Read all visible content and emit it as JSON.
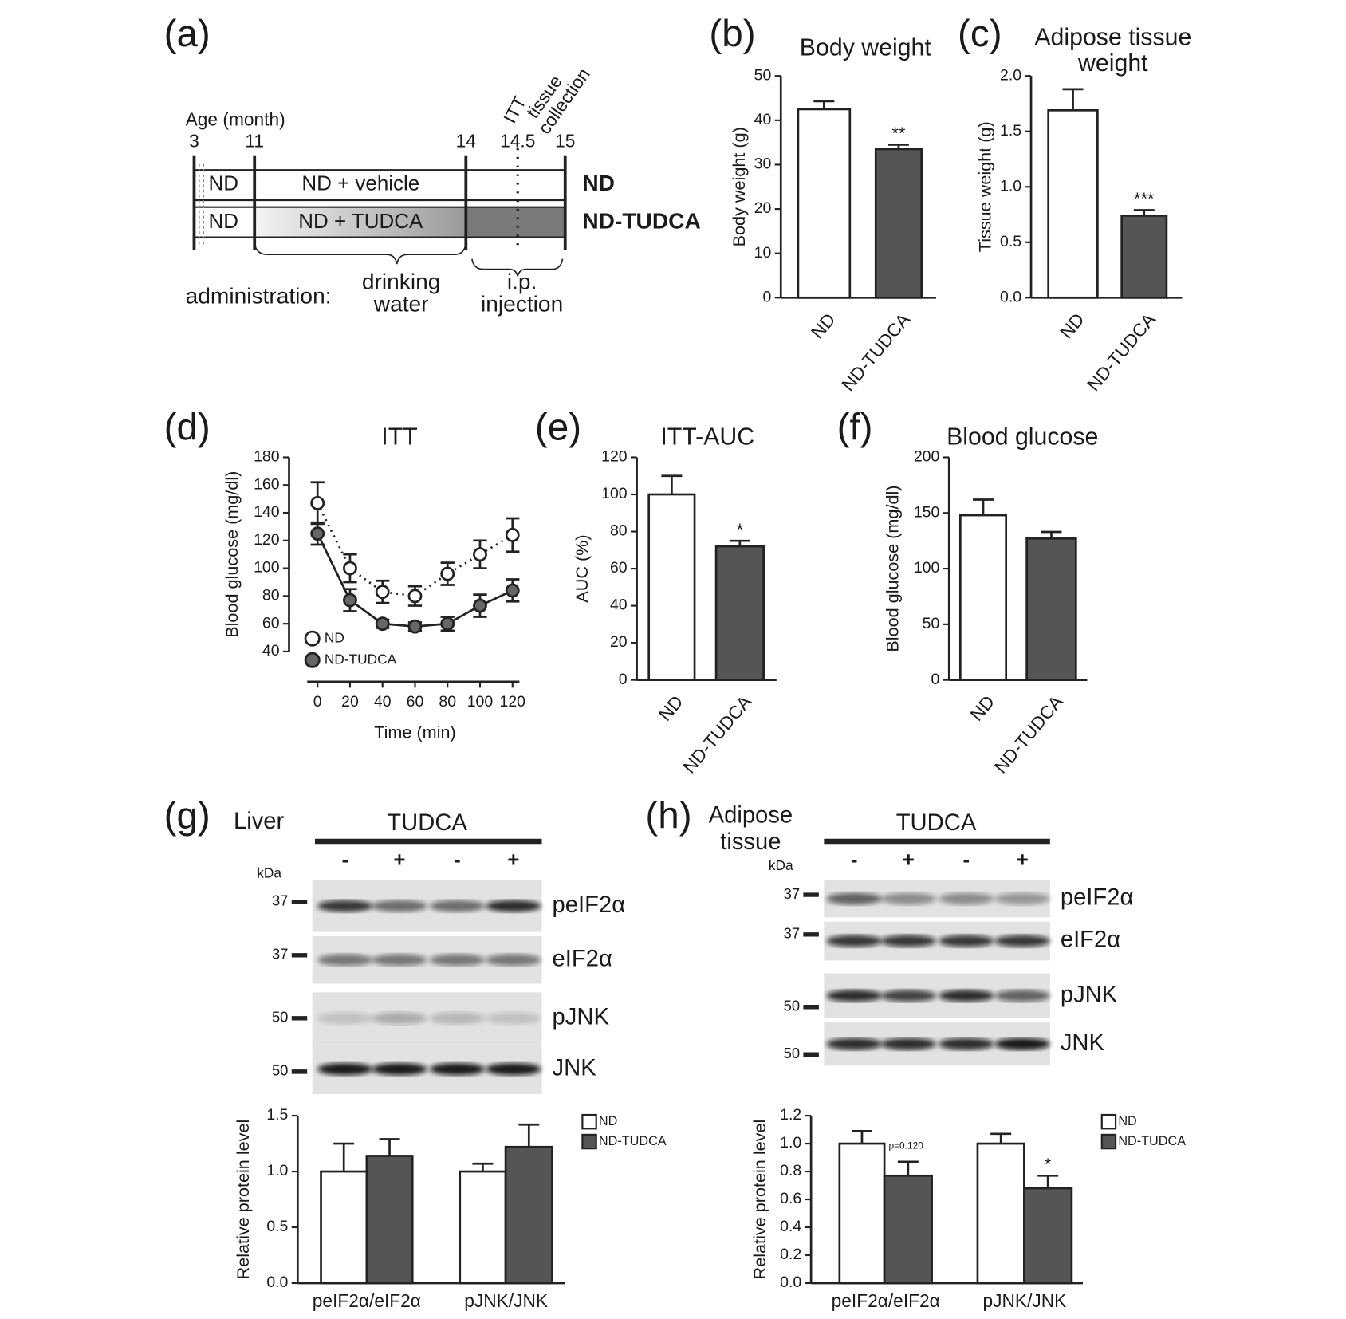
{
  "diagram": {
    "label": "(a)",
    "age_label": "Age (month)",
    "ages": [
      "3",
      "11",
      "14",
      "14.5",
      "15"
    ],
    "itt": "ITT",
    "collection": [
      "tissue",
      "collection"
    ],
    "rows": [
      {
        "pre": "ND",
        "treatment": "ND + vehicle",
        "group": "ND"
      },
      {
        "pre": "ND",
        "treatment": "ND + TUDCA",
        "group": "ND-TUDCA"
      }
    ],
    "administration": "administration:",
    "routes": [
      [
        "drinking",
        "water"
      ],
      [
        "i.p.",
        "injection"
      ]
    ]
  },
  "chart_data": [
    {
      "type": "bar",
      "label": "(b)",
      "title": [
        "Body weight"
      ],
      "y_label": "Body weight (g)",
      "categories": [
        "ND",
        "ND-TUDCA"
      ],
      "values": [
        42.5,
        33.5
      ],
      "errors": [
        1.8,
        1.0
      ],
      "annotations": [
        null,
        "**"
      ],
      "colors": [
        "#ffffff",
        "#555555"
      ],
      "ylim": [
        0,
        50
      ],
      "yticks": [
        0,
        10,
        20,
        30,
        40,
        50
      ]
    },
    {
      "type": "bar",
      "label": "(c)",
      "title": [
        "Adipose tissue",
        "weight"
      ],
      "y_label": "Tissue weight (g)",
      "categories": [
        "ND",
        "ND-TUDCA"
      ],
      "values": [
        1.69,
        0.74
      ],
      "errors": [
        0.19,
        0.05
      ],
      "annotations": [
        null,
        "***"
      ],
      "colors": [
        "#ffffff",
        "#555555"
      ],
      "ylim": [
        0,
        2
      ],
      "yticks": [
        {
          "value": 0,
          "label": "0.0"
        },
        {
          "value": 0.5,
          "label": "0.5"
        },
        {
          "value": 1,
          "label": "1.0"
        },
        {
          "value": 1.5,
          "label": "1.5"
        },
        {
          "value": 2,
          "label": "2.0"
        }
      ]
    },
    {
      "type": "line",
      "label": "(d)",
      "title": [
        "ITT"
      ],
      "y_label": "Blood glucose (mg/dl)",
      "x_label": "Time (min)",
      "x": [
        0,
        20,
        40,
        60,
        80,
        100,
        120
      ],
      "xlim": [
        0,
        120
      ],
      "xticks": [
        0,
        20,
        40,
        60,
        80,
        100,
        120
      ],
      "series": [
        {
          "name": "ND",
          "color": "#ffffff",
          "line_style": "dotted",
          "values": [
            147,
            100,
            83,
            80,
            96,
            110,
            124
          ],
          "errors": [
            15,
            10,
            8,
            7,
            8,
            10,
            12
          ]
        },
        {
          "name": "ND-TUDCA",
          "color": "#666666",
          "line_style": "solid",
          "values": [
            125,
            77,
            60,
            58,
            60,
            73,
            84
          ],
          "errors": [
            8,
            8,
            3,
            3,
            5,
            8,
            8
          ]
        }
      ],
      "ylim": [
        40,
        180
      ],
      "yticks": [
        40,
        60,
        80,
        100,
        120,
        140,
        160,
        180
      ],
      "legend": "lower left"
    },
    {
      "type": "bar",
      "label": "(e)",
      "title": [
        "ITT-AUC"
      ],
      "y_label": "AUC (%)",
      "categories": [
        "ND",
        "ND-TUDCA"
      ],
      "values": [
        100,
        72
      ],
      "errors": [
        10,
        3
      ],
      "annotations": [
        null,
        "*"
      ],
      "colors": [
        "#ffffff",
        "#555555"
      ],
      "ylim": [
        0,
        120
      ],
      "yticks": [
        0,
        20,
        40,
        60,
        80,
        100,
        120
      ]
    },
    {
      "type": "bar",
      "label": "(f)",
      "title": [
        "Blood glucose"
      ],
      "y_label": "Blood glucose (mg/dl)",
      "categories": [
        "ND",
        "ND-TUDCA"
      ],
      "values": [
        148,
        127
      ],
      "errors": [
        14,
        6
      ],
      "colors": [
        "#ffffff",
        "#555555"
      ],
      "ylim": [
        0,
        200
      ],
      "yticks": [
        0,
        50,
        100,
        150,
        200
      ]
    },
    {
      "type": "bar",
      "y_label": "Relative protein level",
      "categories": [
        "peIF2α/eIF2α",
        "pJNK/JNK"
      ],
      "series": [
        {
          "name": "ND",
          "color": "#ffffff",
          "values": [
            1.0,
            1.0
          ],
          "errors": [
            0.25,
            0.07
          ]
        },
        {
          "name": "ND-TUDCA",
          "color": "#555555",
          "values": [
            1.14,
            1.22
          ],
          "errors": [
            0.15,
            0.2
          ]
        }
      ],
      "ylim": [
        0,
        1.5
      ],
      "yticks": [
        {
          "value": 0,
          "label": "0.0"
        },
        {
          "value": 0.5,
          "label": "0.5"
        },
        {
          "value": 1,
          "label": "1.0"
        },
        {
          "value": 1.5,
          "label": "1.5"
        }
      ],
      "legend": "upper right"
    },
    {
      "type": "bar",
      "y_label": "Relative protein level",
      "categories": [
        "peIF2α/eIF2α",
        "pJNK/JNK"
      ],
      "series": [
        {
          "name": "ND",
          "color": "#ffffff",
          "values": [
            1.0,
            1.0
          ],
          "errors": [
            0.09,
            0.07
          ]
        },
        {
          "name": "ND-TUDCA",
          "color": "#555555",
          "values": [
            0.77,
            0.68
          ],
          "errors": [
            0.1,
            0.09
          ],
          "annotations": [
            "p=0.120",
            "*"
          ]
        }
      ],
      "ylim": [
        0,
        1.2
      ],
      "yticks": [
        {
          "value": 0,
          "label": "0.0"
        },
        {
          "value": 0.2,
          "label": "0.2"
        },
        {
          "value": 0.4,
          "label": "0.4"
        },
        {
          "value": 0.6,
          "label": "0.6"
        },
        {
          "value": 0.8,
          "label": "0.8"
        },
        {
          "value": 1,
          "label": "1.0"
        },
        {
          "value": 1.2,
          "label": "1.2"
        }
      ],
      "legend": "upper right"
    }
  ],
  "blots": [
    {
      "label": "(g)",
      "tissue": [
        "Liver"
      ],
      "treatment": "TUDCA",
      "lanes": [
        "-",
        "+",
        "-",
        "+"
      ],
      "kda_label": "kDa",
      "bands": [
        {
          "name": "peIF2α",
          "kda": "37"
        },
        {
          "name": "eIF2α",
          "kda": "37"
        },
        {
          "name": "pJNK",
          "kda": "50"
        },
        {
          "name": "JNK",
          "kda": "50"
        }
      ]
    },
    {
      "label": "(h)",
      "tissue": [
        "Adipose",
        "tissue"
      ],
      "treatment": "TUDCA",
      "lanes": [
        "-",
        "+",
        "-",
        "+"
      ],
      "kda_label": "kDa",
      "bands": [
        {
          "name": "peIF2α",
          "kda": "37"
        },
        {
          "name": "eIF2α",
          "kda": "37"
        },
        {
          "name": "pJNK",
          "kda": "50"
        },
        {
          "name": "JNK",
          "kda": "50"
        }
      ]
    }
  ]
}
